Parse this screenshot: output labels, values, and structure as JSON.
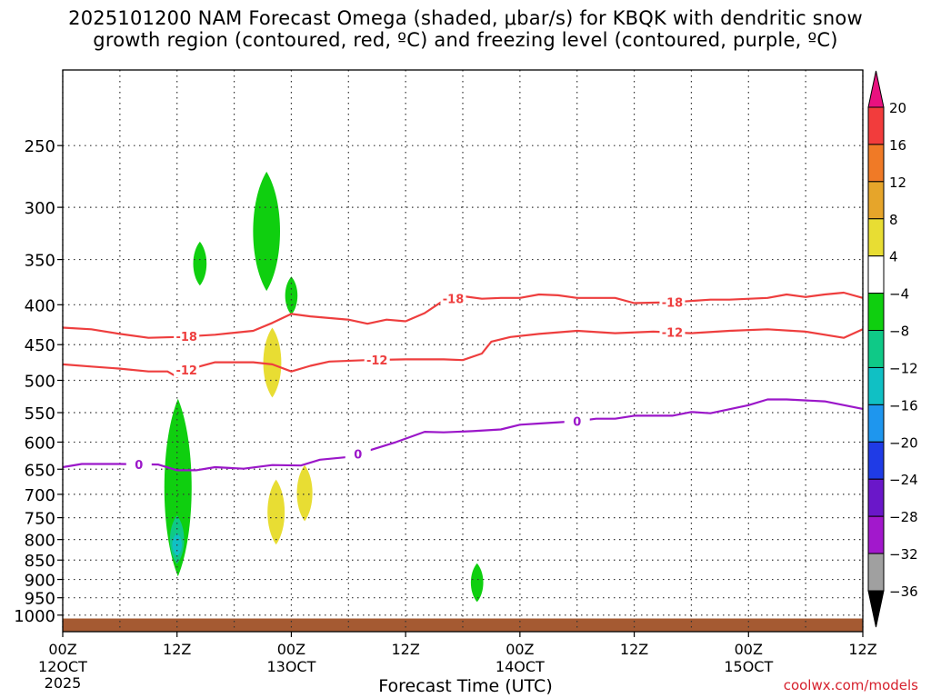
{
  "header": {
    "title_line1": "2025101200 NAM Forecast Omega (shaded, μbar/s) for KBQK with dendritic snow",
    "title_line2": "growth region (contoured, red, ºC) and freezing level (contoured, purple, ºC)"
  },
  "footer": {
    "xlabel": "Forecast Time (UTC)",
    "credit": "coolwx.com/models"
  },
  "chart_data": {
    "type": "heatmap",
    "title": "2025101200 NAM Forecast Omega (shaded, μbar/s) for KBQK with dendritic snow growth region (contoured, red, ºC) and freezing level (contoured, purple, ºC)",
    "xlabel": "Forecast Time (UTC)",
    "ylabel": "",
    "x_unit": "forecast hour",
    "xlim": [
      0,
      84
    ],
    "ylim": [
      1050,
      200
    ],
    "y_scale": "log",
    "grid": true,
    "y_ticks": [
      250,
      300,
      350,
      400,
      450,
      500,
      550,
      600,
      650,
      700,
      750,
      800,
      850,
      900,
      950,
      1000
    ],
    "x_ticks": [
      {
        "hour": 0,
        "time": "00Z",
        "date": "12OCT",
        "year": "2025"
      },
      {
        "hour": 12,
        "time": "12Z",
        "date": "",
        "year": ""
      },
      {
        "hour": 24,
        "time": "00Z",
        "date": "13OCT",
        "year": ""
      },
      {
        "hour": 36,
        "time": "12Z",
        "date": "",
        "year": ""
      },
      {
        "hour": 48,
        "time": "00Z",
        "date": "14OCT",
        "year": ""
      },
      {
        "hour": 60,
        "time": "12Z",
        "date": "",
        "year": ""
      },
      {
        "hour": 72,
        "time": "00Z",
        "date": "15OCT",
        "year": ""
      },
      {
        "hour": 84,
        "time": "12Z",
        "date": "",
        "year": ""
      }
    ],
    "colorbar": {
      "labels": [
        "20",
        "16",
        "12",
        "8",
        "4",
        "−4",
        "−8",
        "−12",
        "−16",
        "−20",
        "−24",
        "−28",
        "−32",
        "−36"
      ],
      "colors": [
        "#e8117f",
        "#f23c3c",
        "#f07a26",
        "#e6a52a",
        "#e8dd33",
        "#ffffff",
        "#0fcf0f",
        "#0fc987",
        "#10c0c4",
        "#1e96ee",
        "#1f3be6",
        "#6a17c9",
        "#a218cc",
        "#a0a0a0",
        "#000000"
      ]
    },
    "terrain": {
      "surface_pressure_hPa": 1010,
      "color": "#a55a32"
    },
    "contour_lines": [
      {
        "label": "-18",
        "color": "#ee3e3e",
        "points": [
          [
            0,
            428
          ],
          [
            3,
            430
          ],
          [
            6,
            436
          ],
          [
            9,
            441
          ],
          [
            12,
            440
          ],
          [
            16,
            437
          ],
          [
            20,
            432
          ],
          [
            22,
            422
          ],
          [
            24,
            411
          ],
          [
            26,
            414
          ],
          [
            30,
            418
          ],
          [
            32,
            423
          ],
          [
            34,
            418
          ],
          [
            36,
            420
          ],
          [
            38,
            410
          ],
          [
            40,
            395
          ],
          [
            42,
            390
          ],
          [
            44,
            393
          ],
          [
            46,
            392
          ],
          [
            48,
            392
          ],
          [
            50,
            388
          ],
          [
            52,
            389
          ],
          [
            54,
            392
          ],
          [
            58,
            392
          ],
          [
            60,
            398
          ],
          [
            64,
            397
          ],
          [
            68,
            394
          ],
          [
            70,
            394
          ],
          [
            74,
            392
          ],
          [
            76,
            388
          ],
          [
            78,
            391
          ],
          [
            80,
            388
          ],
          [
            82,
            386
          ],
          [
            84,
            392
          ]
        ]
      },
      {
        "label": "-12",
        "color": "#ee3e3e",
        "points": [
          [
            0,
            477
          ],
          [
            3,
            480
          ],
          [
            6,
            483
          ],
          [
            9,
            487
          ],
          [
            11,
            487
          ],
          [
            12,
            495
          ],
          [
            13,
            485
          ],
          [
            16,
            474
          ],
          [
            20,
            474
          ],
          [
            22,
            477
          ],
          [
            24,
            487
          ],
          [
            26,
            479
          ],
          [
            28,
            473
          ],
          [
            32,
            471
          ],
          [
            36,
            470
          ],
          [
            40,
            470
          ],
          [
            42,
            471
          ],
          [
            44,
            462
          ],
          [
            45,
            446
          ],
          [
            47,
            440
          ],
          [
            50,
            436
          ],
          [
            54,
            432
          ],
          [
            58,
            435
          ],
          [
            62,
            433
          ],
          [
            66,
            435
          ],
          [
            70,
            432
          ],
          [
            74,
            430
          ],
          [
            78,
            433
          ],
          [
            82,
            441
          ],
          [
            84,
            430
          ]
        ]
      },
      {
        "label": "0",
        "color": "#9b17c9",
        "points": [
          [
            0,
            646
          ],
          [
            2,
            640
          ],
          [
            6,
            640
          ],
          [
            10,
            641
          ],
          [
            12,
            652
          ],
          [
            14,
            652
          ],
          [
            16,
            646
          ],
          [
            19,
            649
          ],
          [
            22,
            642
          ],
          [
            25,
            643
          ],
          [
            27,
            632
          ],
          [
            30,
            627
          ],
          [
            32,
            616
          ],
          [
            35,
            600
          ],
          [
            38,
            582
          ],
          [
            40,
            583
          ],
          [
            43,
            581
          ],
          [
            46,
            578
          ],
          [
            48,
            570
          ],
          [
            50,
            568
          ],
          [
            54,
            564
          ],
          [
            56,
            560
          ],
          [
            58,
            560
          ],
          [
            60,
            555
          ],
          [
            64,
            555
          ],
          [
            66,
            549
          ],
          [
            68,
            551
          ],
          [
            72,
            538
          ],
          [
            74,
            529
          ],
          [
            76,
            529
          ],
          [
            80,
            532
          ],
          [
            84,
            544
          ]
        ]
      }
    ],
    "shaded_regions": [
      {
        "value_range": "-8 to -4",
        "color": "#0fcf0f",
        "hour": 14.4,
        "pressure": [
          332,
          378
        ]
      },
      {
        "value_range": "-8 to -4",
        "color": "#0fcf0f",
        "hour": 21.4,
        "pressure": [
          270,
          384
        ]
      },
      {
        "value_range": "-8 to -4",
        "color": "#0fcf0f",
        "hour": 24.0,
        "pressure": [
          368,
          412
        ]
      },
      {
        "value_range": "4 to 8",
        "color": "#e8dd33",
        "hour": 22.0,
        "pressure": [
          428,
          526
        ]
      },
      {
        "value_range": "-8 to -4",
        "color": "#0fcf0f",
        "hour": 12.1,
        "pressure": [
          528,
          892
        ]
      },
      {
        "value_range": "-12 to -8",
        "color": "#0fc987",
        "hour": 12.0,
        "pressure": [
          745,
          860
        ]
      },
      {
        "value_range": "-16 to -12",
        "color": "#10c0c4",
        "hour": 12.0,
        "pressure": [
          785,
          840
        ]
      },
      {
        "value_range": "4 to 8",
        "color": "#e8dd33",
        "hour": 22.4,
        "pressure": [
          670,
          812
        ]
      },
      {
        "value_range": "4 to 8",
        "color": "#e8dd33",
        "hour": 25.4,
        "pressure": [
          642,
          758
        ]
      },
      {
        "value_range": "-8 to -4",
        "color": "#0fcf0f",
        "hour": 43.5,
        "pressure": [
          858,
          962
        ]
      }
    ]
  }
}
